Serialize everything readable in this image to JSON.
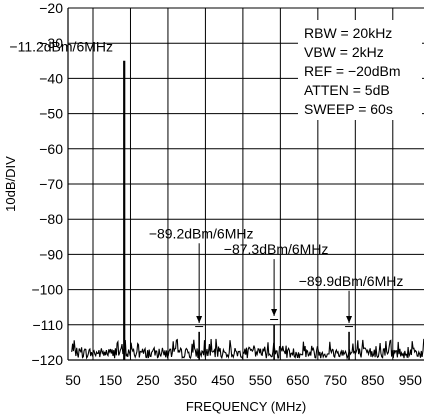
{
  "chart_data": {
    "type": "line",
    "xlabel": "FREQUENCY (MHz)",
    "ylabel": "10dB/DIV",
    "xlim": [
      50,
      1000
    ],
    "ylim": [
      -120,
      -20
    ],
    "x_ticks": [
      50,
      150,
      250,
      350,
      450,
      550,
      650,
      750,
      850,
      950
    ],
    "x_tick_labels": [
      "50",
      "150",
      "250",
      "350",
      "450",
      "550",
      "650",
      "750",
      "850",
      "950"
    ],
    "y_ticks": [
      -20,
      -30,
      -40,
      -50,
      -60,
      -70,
      -80,
      -90,
      -100,
      -110,
      -120
    ],
    "y_tick_labels": [
      "−20",
      "−30",
      "−40",
      "−50",
      "−60",
      "−70",
      "−80",
      "−90",
      "−100",
      "−110",
      "−120"
    ],
    "grid": true,
    "noise_floor": -119,
    "peaks": [
      {
        "x": 200,
        "y": -35
      },
      {
        "x": 400,
        "y": -112
      },
      {
        "x": 600,
        "y": -110
      },
      {
        "x": 800,
        "y": -112
      }
    ],
    "annotations": [
      {
        "text": "−11.2dBm/6MHz",
        "x": 200,
        "y": -31
      },
      {
        "text": "−89.2dBm/6MHz",
        "x": 400,
        "y": -84
      },
      {
        "text": "−87.3dBm/6MHz",
        "x": 600,
        "y": -88.5
      },
      {
        "text": "−89.9dBm/6MHz",
        "x": 800,
        "y": -97.5
      }
    ],
    "settings": [
      "RBW = 20kHz",
      "VBW = 2kHz",
      "REF = −20dBm",
      "ATTEN = 5dB",
      "SWEEP = 60s"
    ]
  }
}
